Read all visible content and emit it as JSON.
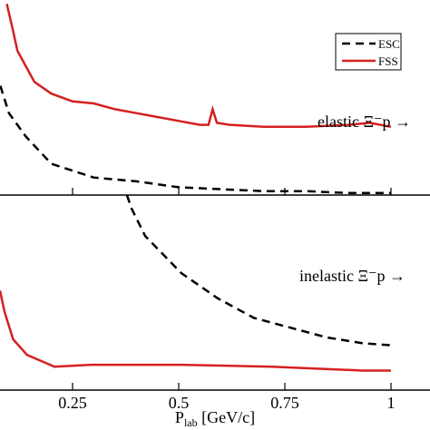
{
  "chart_data": [
    {
      "type": "line",
      "xlim": [
        0.079,
        1.092
      ],
      "ylim": [
        0,
        1
      ],
      "xticks": [
        0.25,
        0.5,
        0.75,
        1
      ],
      "annotation": "elastic Ξ⁻p →",
      "legend": "upper right",
      "series": [
        {
          "name": "ESC",
          "color": "#000000",
          "dash": true,
          "x": [
            0.08,
            0.1,
            0.12,
            0.14,
            0.2,
            0.3,
            0.4,
            0.5,
            0.6,
            0.7,
            0.8,
            0.9,
            1.0
          ],
          "values": [
            0.56,
            0.42,
            0.36,
            0.3,
            0.16,
            0.09,
            0.07,
            0.04,
            0.03,
            0.02,
            0.02,
            0.01,
            0.01
          ]
        },
        {
          "name": "FSS",
          "color": "#d42020",
          "dash": false,
          "x": [
            0.095,
            0.11,
            0.12,
            0.16,
            0.2,
            0.25,
            0.3,
            0.35,
            0.4,
            0.45,
            0.5,
            0.55,
            0.57,
            0.58,
            0.59,
            0.62,
            0.7,
            0.8,
            0.9,
            0.95,
            1.0
          ],
          "values": [
            0.98,
            0.84,
            0.74,
            0.58,
            0.52,
            0.48,
            0.47,
            0.44,
            0.42,
            0.4,
            0.38,
            0.36,
            0.36,
            0.44,
            0.37,
            0.36,
            0.35,
            0.35,
            0.36,
            0.37,
            0.35
          ]
        }
      ]
    },
    {
      "type": "line",
      "xlim": [
        0.079,
        1.092
      ],
      "ylim": [
        0,
        1
      ],
      "xticks": [
        0.25,
        0.5,
        0.75,
        1
      ],
      "xlabel": [
        "P",
        "lab",
        " [GeV/c]"
      ],
      "annotation": "inelastic Ξ⁻p →",
      "series": [
        {
          "color": "#000000",
          "dash": true,
          "x": [
            0.378,
            0.389,
            0.421,
            0.506,
            0.592,
            0.677,
            0.763,
            0.848,
            0.934,
            1.0
          ],
          "values": [
            1.0,
            0.93,
            0.79,
            0.6,
            0.47,
            0.37,
            0.32,
            0.27,
            0.24,
            0.23
          ]
        },
        {
          "color": "#d42020",
          "dash": false,
          "x": [
            0.079,
            0.09,
            0.11,
            0.143,
            0.186,
            0.207,
            0.293,
            0.357,
            0.506,
            0.72,
            0.934,
            1.0
          ],
          "values": [
            0.51,
            0.4,
            0.26,
            0.18,
            0.14,
            0.12,
            0.13,
            0.13,
            0.13,
            0.12,
            0.1,
            0.1
          ]
        }
      ]
    }
  ]
}
